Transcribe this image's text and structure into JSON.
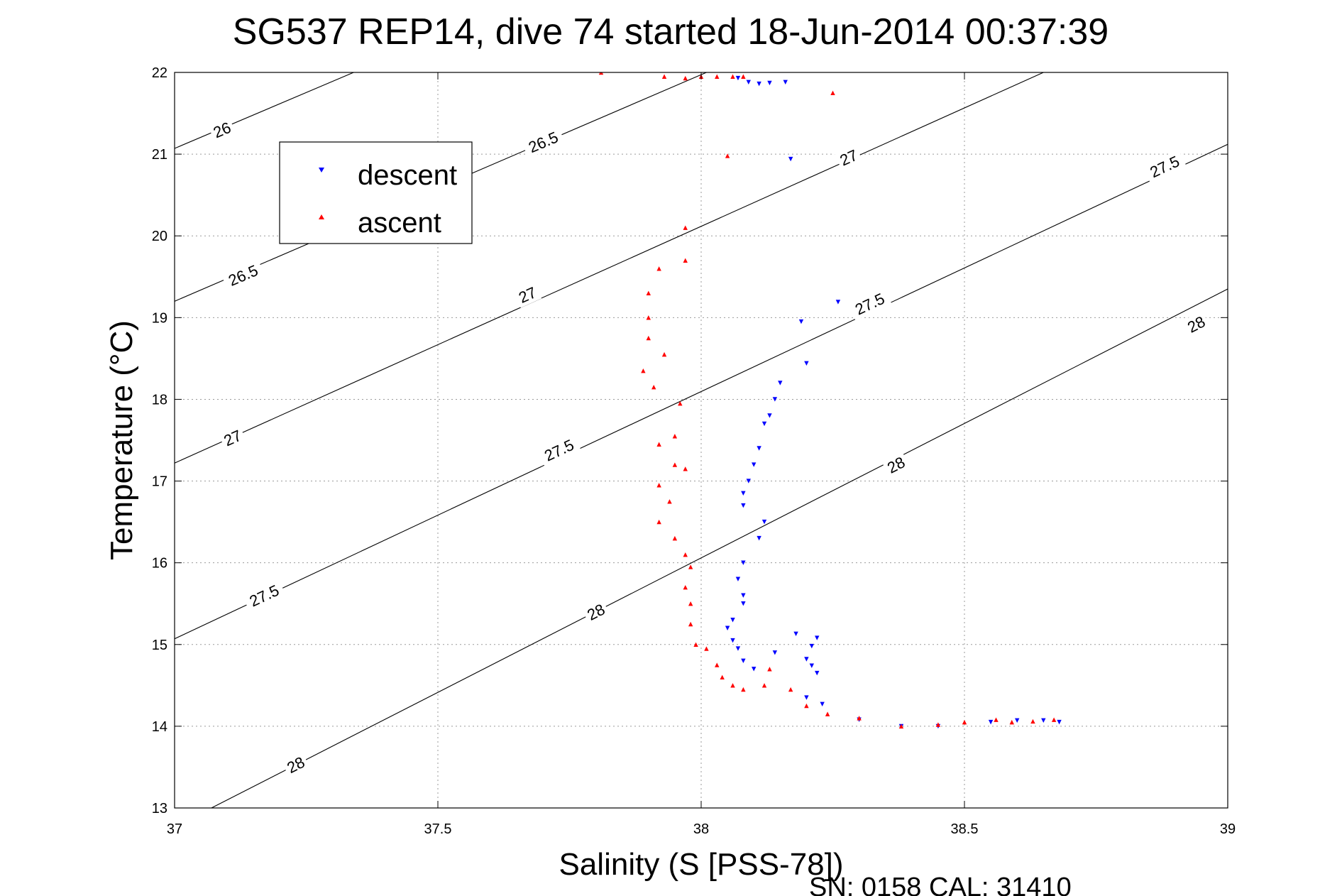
{
  "chart_data": {
    "type": "scatter",
    "title": "SG537 REP14, dive 74 started 18-Jun-2014 00:37:39",
    "xlabel": "Salinity (S [PSS-78])",
    "ylabel": "Temperature (°C)",
    "xlim": [
      37,
      39
    ],
    "ylim": [
      13,
      22
    ],
    "xticks": [
      "37",
      "37.5",
      "38",
      "38.5",
      "39"
    ],
    "yticks": [
      "13",
      "14",
      "15",
      "16",
      "17",
      "18",
      "19",
      "20",
      "21",
      "22"
    ],
    "grid": true,
    "legend_position": "top-left",
    "footer": "SN: 0158  CAL: 31410",
    "density_contours": [
      {
        "label": "26",
        "points": [
          [
            37,
            21.07
          ],
          [
            37.34,
            22
          ]
        ],
        "label_positions": [
          [
            37.09,
            21.3
          ]
        ]
      },
      {
        "label": "26.5",
        "points": [
          [
            37,
            19.2
          ],
          [
            38.01,
            22
          ]
        ],
        "label_positions": [
          [
            37.13,
            19.52
          ],
          [
            37.7,
            21.15
          ]
        ]
      },
      {
        "label": "27",
        "points": [
          [
            37,
            17.22
          ],
          [
            38.65,
            22
          ]
        ],
        "label_positions": [
          [
            37.11,
            17.53
          ],
          [
            37.67,
            19.28
          ],
          [
            38.28,
            20.96
          ]
        ]
      },
      {
        "label": "27.5",
        "points": [
          [
            37,
            15.07
          ],
          [
            39,
            21.12
          ]
        ],
        "label_positions": [
          [
            37.17,
            15.6
          ],
          [
            37.73,
            17.38
          ],
          [
            38.32,
            19.17
          ],
          [
            38.88,
            20.85
          ]
        ]
      },
      {
        "label": "28",
        "points": [
          [
            37.07,
            13
          ],
          [
            39,
            19.35
          ]
        ],
        "label_positions": [
          [
            37.23,
            13.53
          ],
          [
            37.8,
            15.4
          ],
          [
            38.37,
            17.2
          ],
          [
            38.94,
            18.92
          ]
        ]
      }
    ],
    "series": [
      {
        "name": "descent",
        "color": "#0000ff",
        "marker": "triangle-down",
        "points": [
          [
            38.07,
            21.93
          ],
          [
            38.09,
            21.88
          ],
          [
            38.11,
            21.86
          ],
          [
            38.13,
            21.87
          ],
          [
            38.16,
            21.88
          ],
          [
            38.17,
            20.94
          ],
          [
            38.26,
            19.19
          ],
          [
            38.19,
            18.95
          ],
          [
            38.2,
            18.44
          ],
          [
            38.15,
            18.2
          ],
          [
            38.14,
            18
          ],
          [
            38.13,
            17.8
          ],
          [
            38.12,
            17.7
          ],
          [
            38.11,
            17.4
          ],
          [
            38.1,
            17.2
          ],
          [
            38.09,
            17
          ],
          [
            38.08,
            16.85
          ],
          [
            38.08,
            16.7
          ],
          [
            38.12,
            16.5
          ],
          [
            38.11,
            16.3
          ],
          [
            38.08,
            16
          ],
          [
            38.07,
            15.8
          ],
          [
            38.08,
            15.6
          ],
          [
            38.08,
            15.5
          ],
          [
            38.06,
            15.3
          ],
          [
            38.05,
            15.2
          ],
          [
            38.06,
            15.05
          ],
          [
            38.07,
            14.95
          ],
          [
            38.08,
            14.8
          ],
          [
            38.1,
            14.7
          ],
          [
            38.14,
            14.9
          ],
          [
            38.18,
            15.13
          ],
          [
            38.22,
            15.08
          ],
          [
            38.21,
            14.98
          ],
          [
            38.2,
            14.82
          ],
          [
            38.21,
            14.74
          ],
          [
            38.22,
            14.65
          ],
          [
            38.2,
            14.35
          ],
          [
            38.23,
            14.27
          ],
          [
            38.3,
            14.08
          ],
          [
            38.38,
            14.0
          ],
          [
            38.45,
            14.0
          ],
          [
            38.55,
            14.05
          ],
          [
            38.6,
            14.07
          ],
          [
            38.65,
            14.07
          ],
          [
            38.68,
            14.05
          ]
        ]
      },
      {
        "name": "ascent",
        "color": "#ff0000",
        "marker": "triangle-up",
        "points": [
          [
            37.81,
            22
          ],
          [
            37.93,
            21.95
          ],
          [
            37.97,
            21.93
          ],
          [
            38.0,
            21.95
          ],
          [
            38.03,
            21.95
          ],
          [
            38.06,
            21.95
          ],
          [
            38.08,
            21.95
          ],
          [
            38.25,
            21.75
          ],
          [
            38.05,
            20.98
          ],
          [
            37.97,
            20.1
          ],
          [
            37.92,
            19.6
          ],
          [
            37.97,
            19.7
          ],
          [
            37.9,
            19.3
          ],
          [
            37.9,
            19.0
          ],
          [
            37.9,
            18.75
          ],
          [
            37.89,
            18.35
          ],
          [
            37.93,
            18.55
          ],
          [
            37.91,
            18.15
          ],
          [
            37.96,
            17.95
          ],
          [
            37.95,
            17.55
          ],
          [
            37.92,
            17.45
          ],
          [
            37.95,
            17.2
          ],
          [
            37.97,
            17.15
          ],
          [
            37.92,
            16.95
          ],
          [
            37.94,
            16.75
          ],
          [
            37.92,
            16.5
          ],
          [
            37.95,
            16.3
          ],
          [
            37.97,
            16.1
          ],
          [
            37.98,
            15.95
          ],
          [
            37.97,
            15.7
          ],
          [
            37.98,
            15.5
          ],
          [
            37.98,
            15.25
          ],
          [
            37.99,
            15.0
          ],
          [
            38.01,
            14.95
          ],
          [
            38.03,
            14.75
          ],
          [
            38.04,
            14.6
          ],
          [
            38.06,
            14.5
          ],
          [
            38.08,
            14.45
          ],
          [
            38.12,
            14.5
          ],
          [
            38.13,
            14.7
          ],
          [
            38.17,
            14.45
          ],
          [
            38.2,
            14.25
          ],
          [
            38.24,
            14.15
          ],
          [
            38.3,
            14.1
          ],
          [
            38.38,
            14.0
          ],
          [
            38.45,
            14.02
          ],
          [
            38.5,
            14.05
          ],
          [
            38.56,
            14.08
          ],
          [
            38.59,
            14.05
          ],
          [
            38.63,
            14.06
          ],
          [
            38.67,
            14.08
          ]
        ]
      }
    ]
  }
}
